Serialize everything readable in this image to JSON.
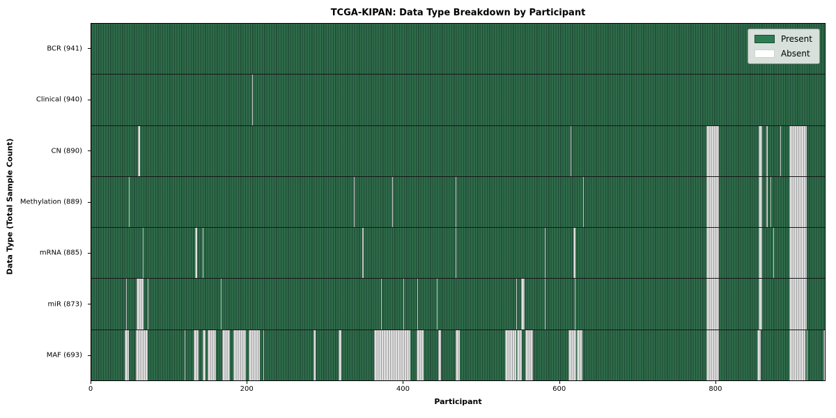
{
  "chart_data": {
    "type": "heatmap",
    "title": "TCGA-KIPAN: Data Type Breakdown by Participant",
    "xlabel": "Participant",
    "ylabel": "Data Type (Total Sample Count)",
    "x_ticks": [
      0,
      200,
      400,
      600,
      800
    ],
    "x_range": [
      0,
      941
    ],
    "total_participants": 941,
    "grid": false,
    "legend_position": "upper right",
    "legend": {
      "present_label": "Present",
      "absent_label": "Absent"
    },
    "colors": {
      "present_fill": "#2d6a49",
      "present_edge": "#1f4c35",
      "legend_present": "#2e7d52",
      "absent_fill": "#d9d9d9",
      "absent_edge": "#9f9f9f",
      "row_separator": "#161616"
    },
    "rows": [
      {
        "name": "BCR",
        "label": "BCR (941)",
        "present_count": 941,
        "absent_count": 0,
        "absent_ranges": []
      },
      {
        "name": "Clinical",
        "label": "Clinical (940)",
        "present_count": 940,
        "absent_count": 1,
        "absent_ranges": [
          [
            206,
            206
          ]
        ]
      },
      {
        "name": "CN",
        "label": "CN (890)",
        "present_count": 890,
        "absent_count": 51,
        "absent_ranges": [
          [
            60,
            62
          ],
          [
            615,
            615
          ],
          [
            789,
            804
          ],
          [
            856,
            860
          ],
          [
            866,
            867
          ],
          [
            884,
            884
          ],
          [
            895,
            917
          ]
        ]
      },
      {
        "name": "Methylation",
        "label": "Methylation (889)",
        "present_count": 889,
        "absent_count": 52,
        "absent_ranges": [
          [
            48,
            48
          ],
          [
            337,
            337
          ],
          [
            386,
            386
          ],
          [
            467,
            467
          ],
          [
            631,
            631
          ],
          [
            789,
            804
          ],
          [
            856,
            860
          ],
          [
            866,
            867
          ],
          [
            871,
            871
          ],
          [
            895,
            917
          ]
        ]
      },
      {
        "name": "mRNA",
        "label": "mRNA (885)",
        "present_count": 885,
        "absent_count": 56,
        "absent_ranges": [
          [
            66,
            66
          ],
          [
            133,
            135
          ],
          [
            143,
            143
          ],
          [
            348,
            348
          ],
          [
            467,
            467
          ],
          [
            582,
            582
          ],
          [
            618,
            620
          ],
          [
            789,
            804
          ],
          [
            856,
            860
          ],
          [
            875,
            875
          ],
          [
            895,
            917
          ]
        ]
      },
      {
        "name": "miR",
        "label": "miR (873)",
        "present_count": 873,
        "absent_count": 68,
        "absent_ranges": [
          [
            45,
            45
          ],
          [
            58,
            66
          ],
          [
            72,
            72
          ],
          [
            166,
            166
          ],
          [
            372,
            372
          ],
          [
            400,
            400
          ],
          [
            418,
            418
          ],
          [
            443,
            443
          ],
          [
            545,
            545
          ],
          [
            551,
            555
          ],
          [
            582,
            582
          ],
          [
            620,
            620
          ],
          [
            789,
            804
          ],
          [
            856,
            860
          ],
          [
            895,
            917
          ]
        ]
      },
      {
        "name": "MAF",
        "label": "MAF (693)",
        "present_count": 693,
        "absent_count": 248,
        "absent_ranges": [
          [
            43,
            47
          ],
          [
            57,
            71
          ],
          [
            120,
            120
          ],
          [
            131,
            137
          ],
          [
            143,
            146
          ],
          [
            149,
            159
          ],
          [
            168,
            177
          ],
          [
            182,
            197
          ],
          [
            202,
            215
          ],
          [
            221,
            221
          ],
          [
            285,
            287
          ],
          [
            317,
            320
          ],
          [
            363,
            408
          ],
          [
            417,
            425
          ],
          [
            445,
            448
          ],
          [
            467,
            472
          ],
          [
            531,
            544
          ],
          [
            546,
            551
          ],
          [
            557,
            566
          ],
          [
            612,
            621
          ],
          [
            623,
            629
          ],
          [
            789,
            804
          ],
          [
            854,
            858
          ],
          [
            895,
            915
          ],
          [
            918,
            918
          ],
          [
            939,
            940
          ]
        ]
      }
    ]
  }
}
